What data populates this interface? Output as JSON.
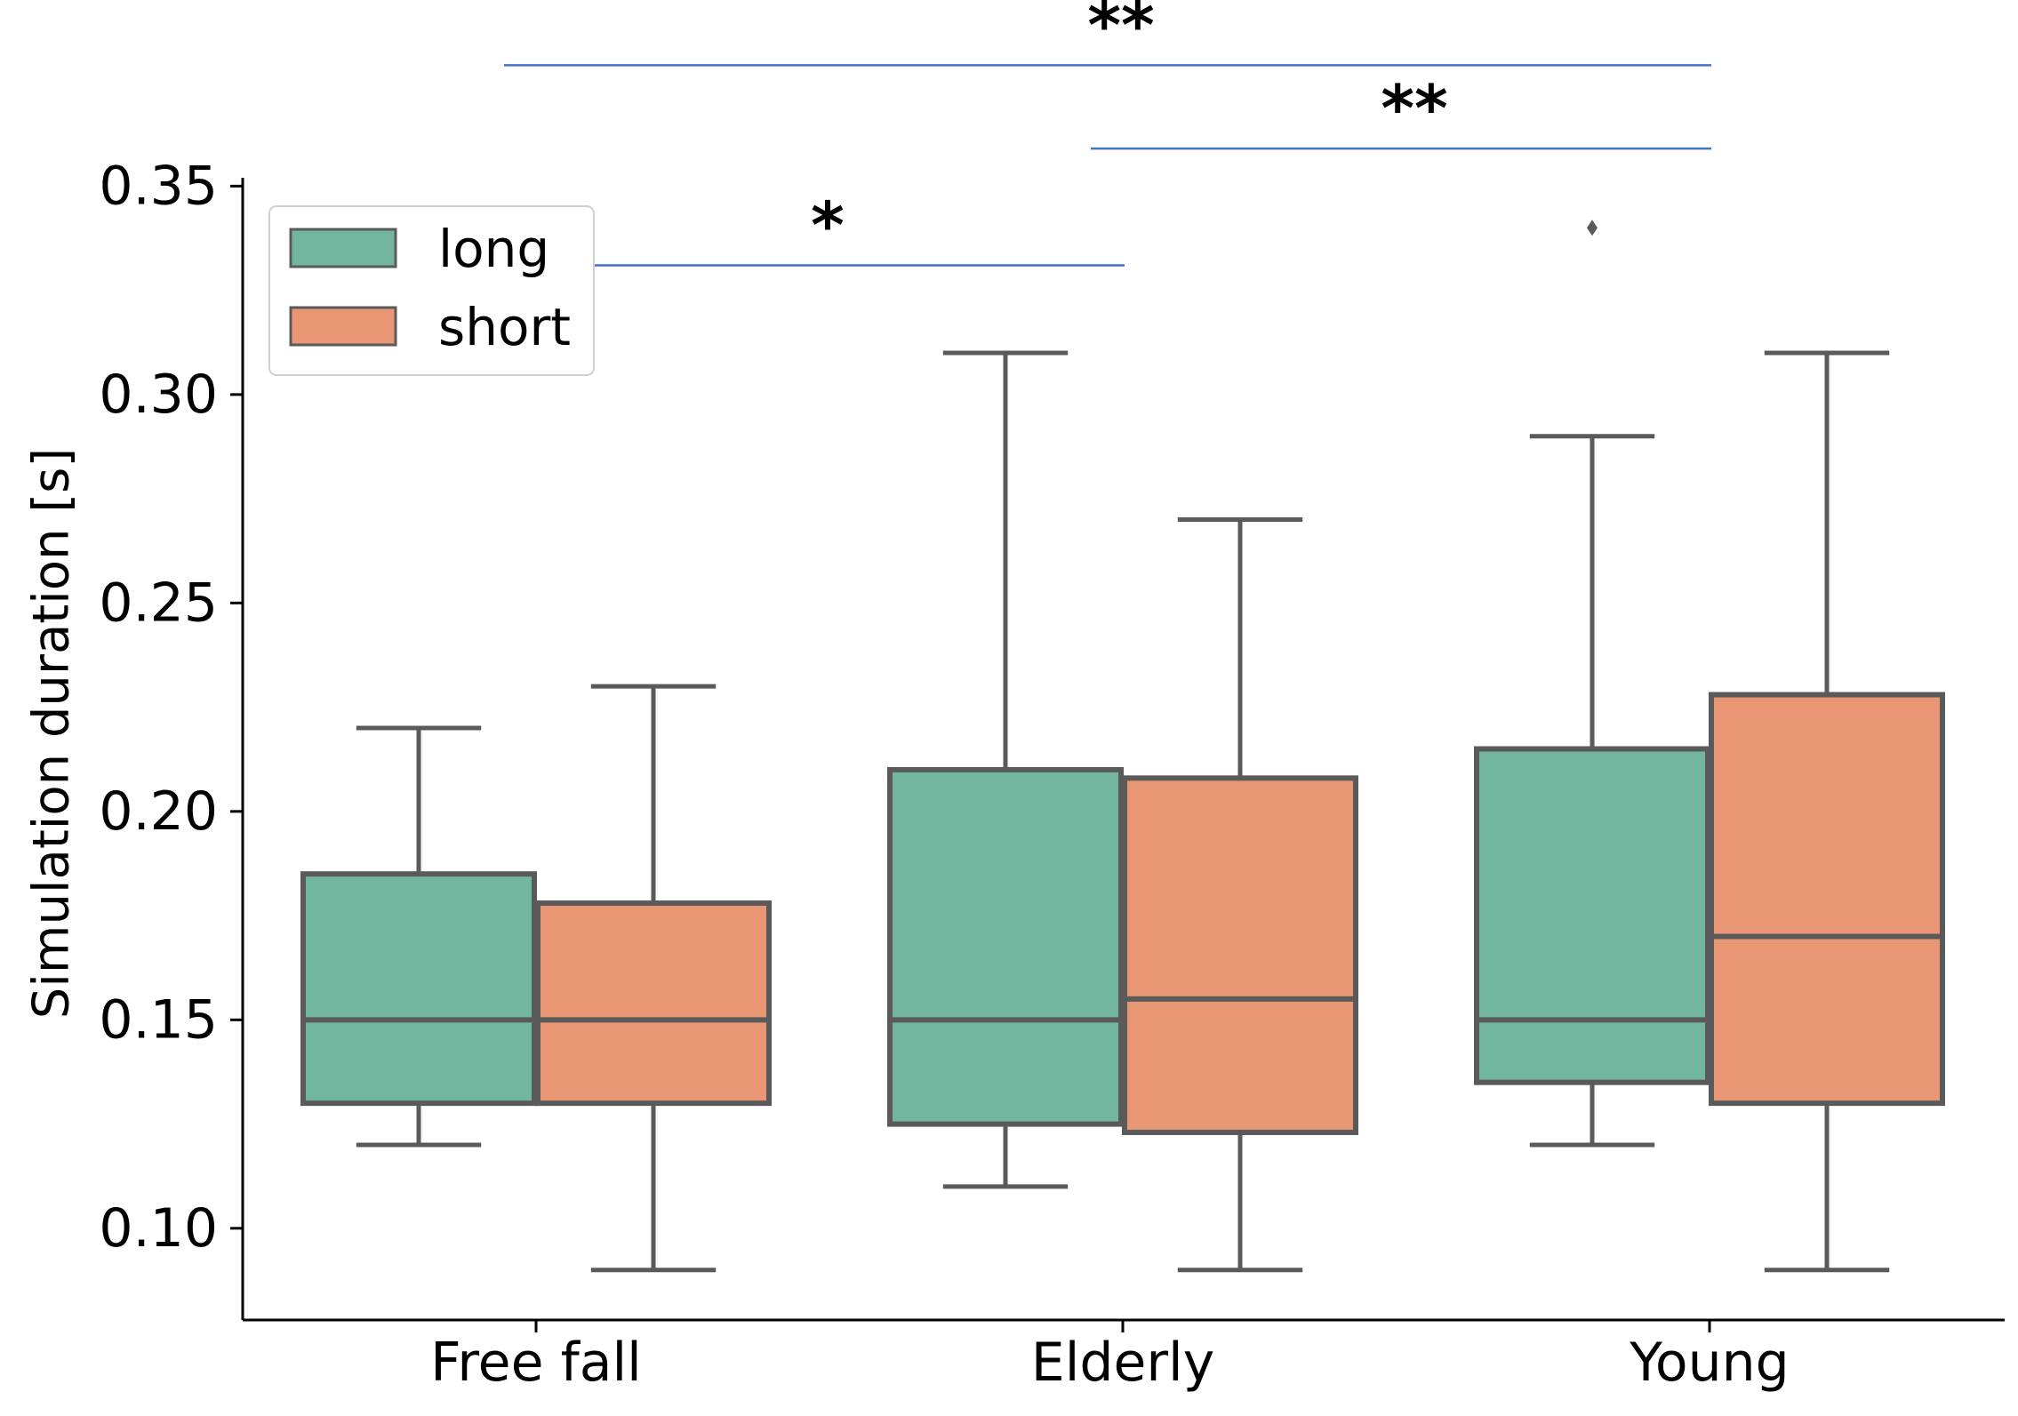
{
  "chart_data": {
    "type": "boxplot",
    "title": "",
    "xlabel": "",
    "ylabel": "Simulation duration [s]",
    "ylim": [
      0.078,
      0.352
    ],
    "yticks": [
      "0.10",
      "0.15",
      "0.20",
      "0.25",
      "0.30",
      "0.35"
    ],
    "ytick_values": [
      0.1,
      0.15,
      0.2,
      0.25,
      0.3,
      0.35
    ],
    "categories": [
      "Free fall",
      "Elderly",
      "Young"
    ],
    "legend": {
      "position": "top-left",
      "entries": [
        {
          "label": "long",
          "color": "#72b6a0"
        },
        {
          "label": "short",
          "color": "#e99675"
        }
      ]
    },
    "series": [
      {
        "name": "long",
        "color": "#72b6a0",
        "boxes": [
          {
            "category": "Free fall",
            "whisker_low": 0.12,
            "q1": 0.13,
            "median": 0.15,
            "q3": 0.185,
            "whisker_high": 0.22,
            "outliers": []
          },
          {
            "category": "Elderly",
            "whisker_low": 0.11,
            "q1": 0.125,
            "median": 0.15,
            "q3": 0.21,
            "whisker_high": 0.31,
            "outliers": []
          },
          {
            "category": "Young",
            "whisker_low": 0.12,
            "q1": 0.135,
            "median": 0.15,
            "q3": 0.215,
            "whisker_high": 0.29,
            "outliers": [
              0.34
            ]
          }
        ]
      },
      {
        "name": "short",
        "color": "#e99675",
        "boxes": [
          {
            "category": "Free fall",
            "whisker_low": 0.09,
            "q1": 0.13,
            "median": 0.15,
            "q3": 0.178,
            "whisker_high": 0.23,
            "outliers": []
          },
          {
            "category": "Elderly",
            "whisker_low": 0.09,
            "q1": 0.123,
            "median": 0.155,
            "q3": 0.208,
            "whisker_high": 0.27,
            "outliers": []
          },
          {
            "category": "Young",
            "whisker_low": 0.09,
            "q1": 0.13,
            "median": 0.17,
            "q3": 0.228,
            "whisker_high": 0.31,
            "outliers": []
          }
        ]
      }
    ],
    "significance": [
      {
        "from": "Free fall",
        "to": "Young",
        "label": "**",
        "level": 0.379
      },
      {
        "from": "Elderly",
        "to": "Young",
        "label": "**",
        "level": 0.359
      },
      {
        "from": "Free fall",
        "to": "Elderly",
        "label": "*",
        "level": 0.331
      }
    ],
    "styles": {
      "box_edge_color": "#5a5a5a",
      "significance_line_color": "#4472c4",
      "axis_color": "#000000"
    }
  }
}
